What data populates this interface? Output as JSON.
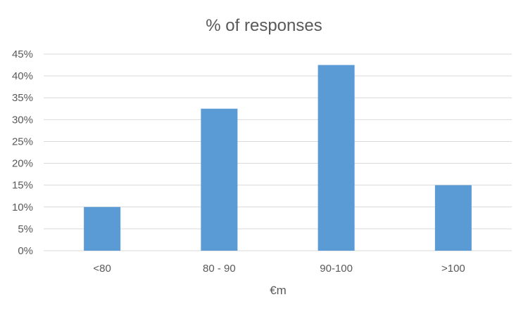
{
  "chart_data": {
    "type": "bar",
    "title": "% of responses",
    "xlabel": "€m",
    "ylabel": "",
    "categories": [
      "<80",
      "80 - 90",
      "90-100",
      ">100"
    ],
    "values": [
      10,
      32.5,
      42.5,
      15
    ],
    "value_unit": "%",
    "ylim": [
      0,
      45
    ],
    "yticks": [
      "0%",
      "5%",
      "10%",
      "15%",
      "20%",
      "25%",
      "30%",
      "35%",
      "40%",
      "45%"
    ],
    "ytick_values": [
      0,
      5,
      10,
      15,
      20,
      25,
      30,
      35,
      40,
      45
    ],
    "grid": true,
    "legend": "none",
    "colors": {
      "bar": "#5b9bd5",
      "grid": "#d9d9d9",
      "text": "#595959"
    }
  }
}
